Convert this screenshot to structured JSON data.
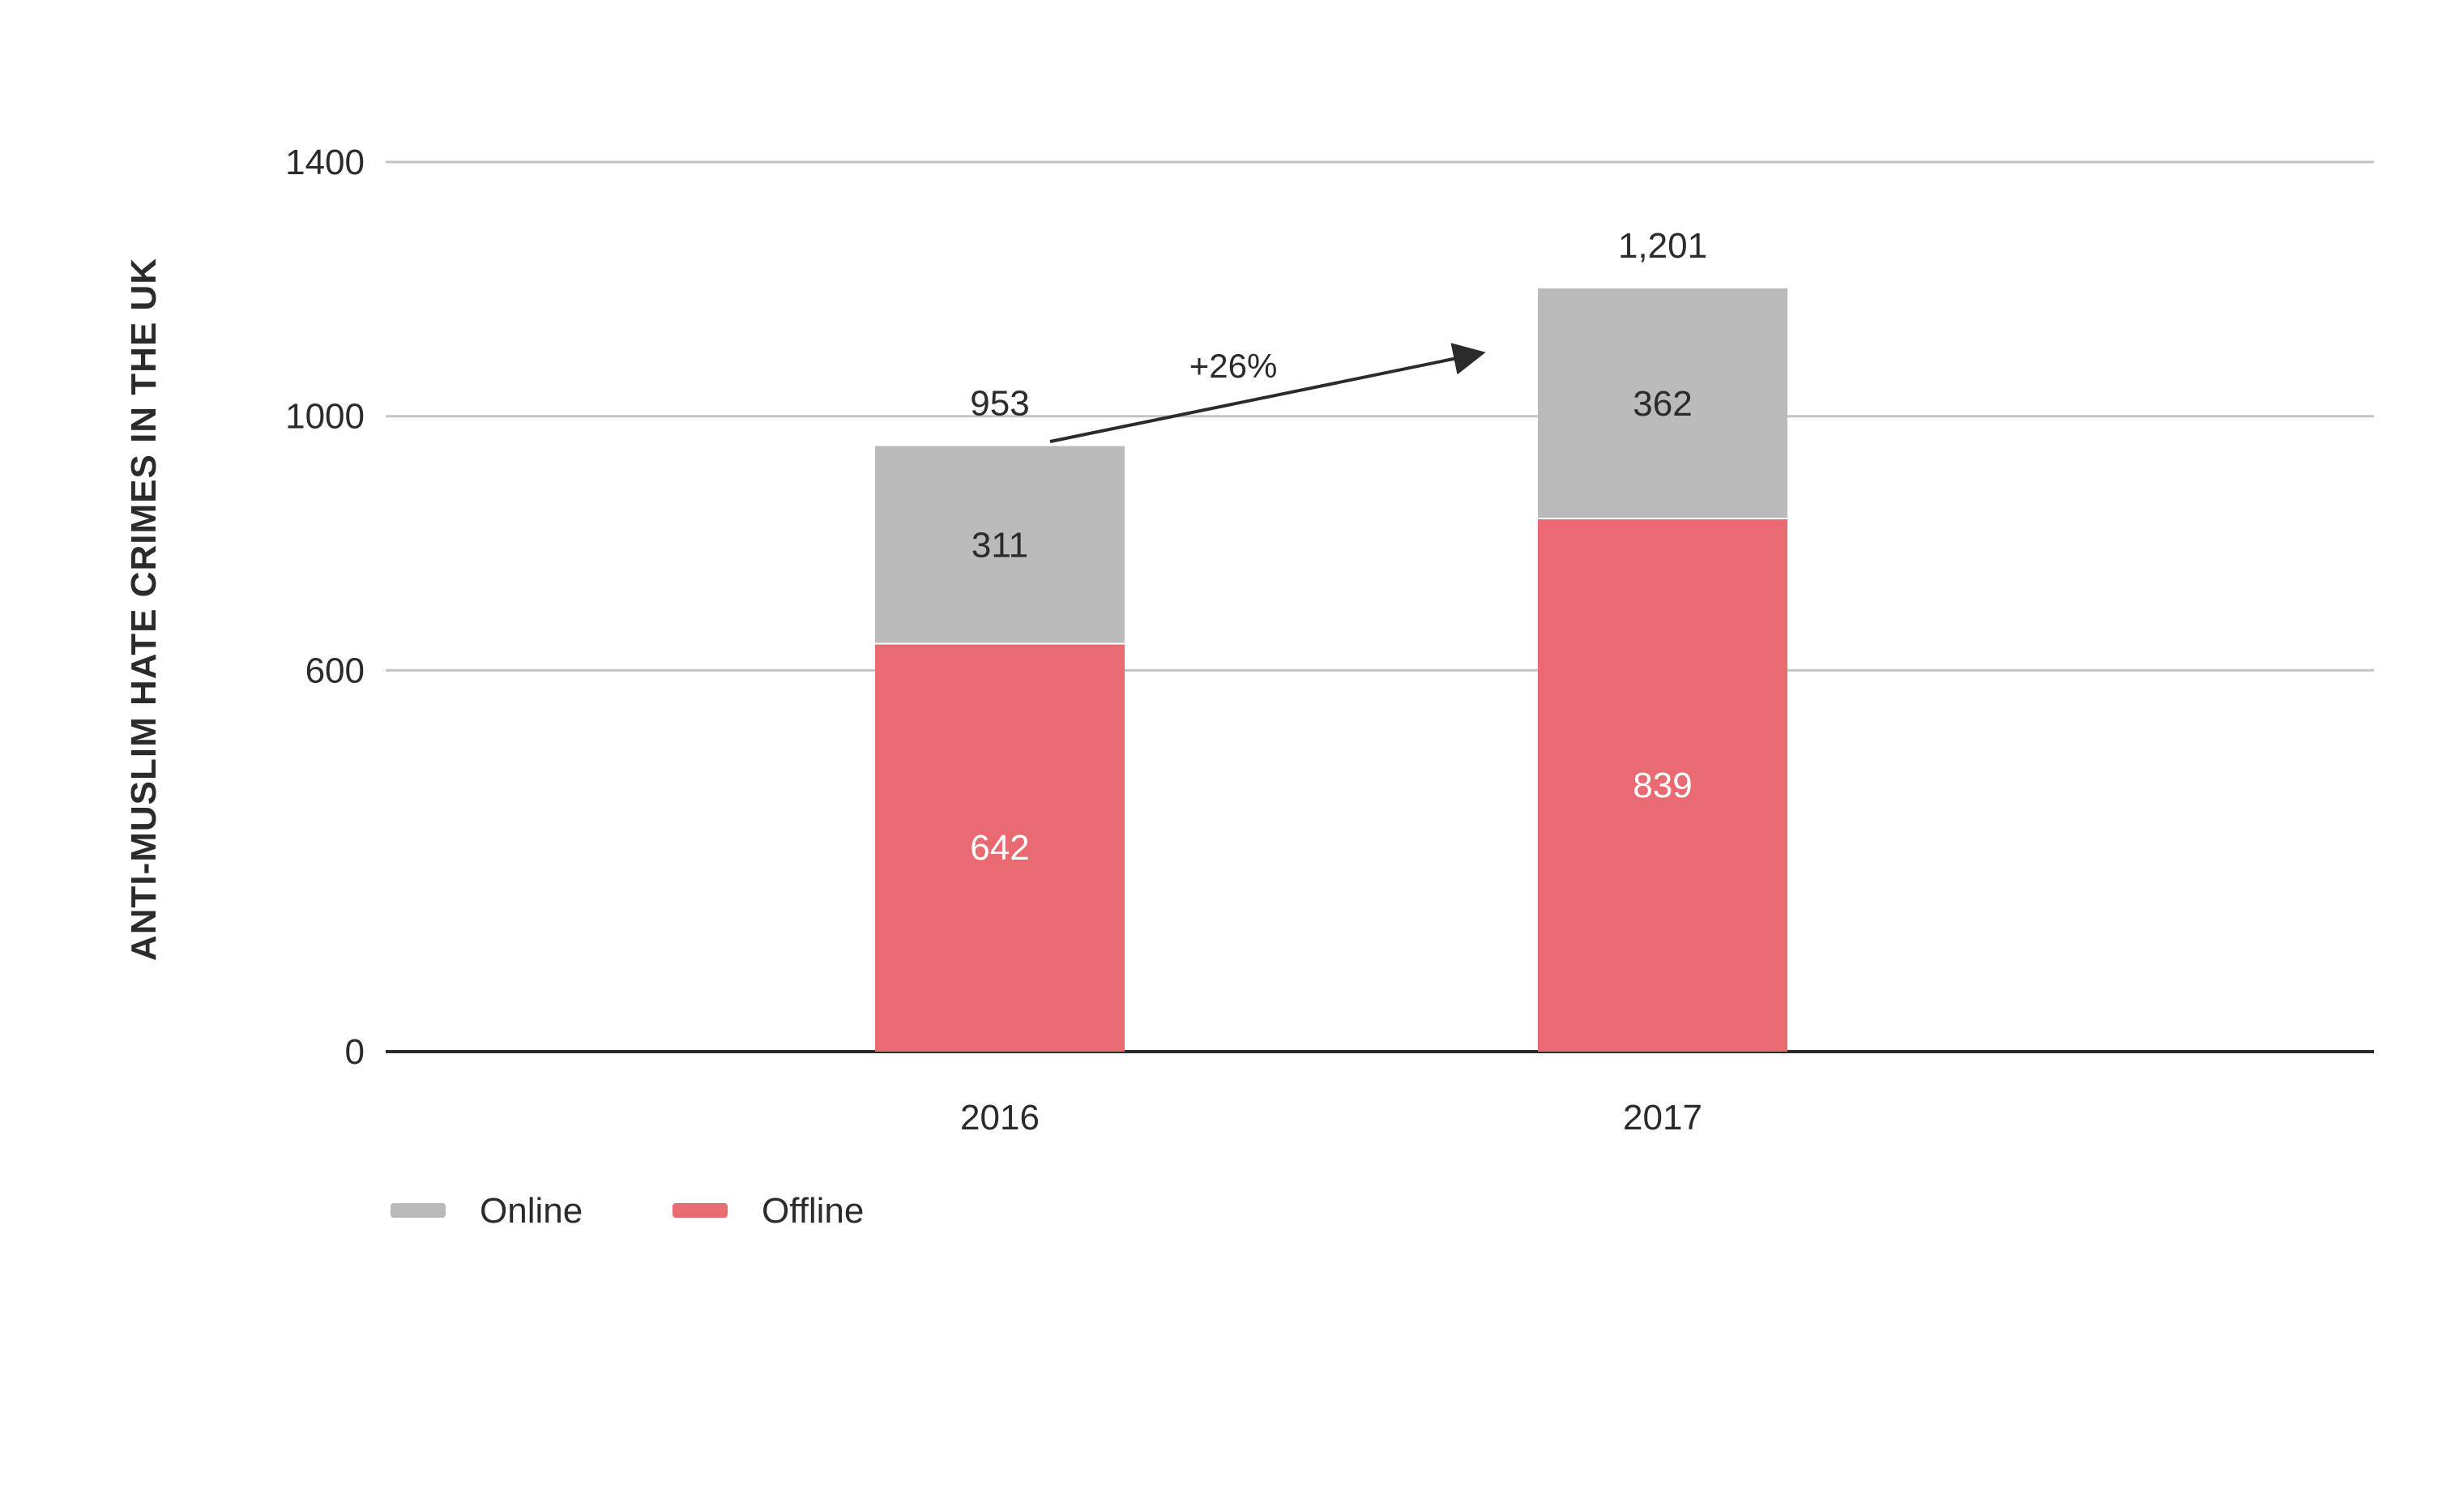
{
  "chart_data": {
    "type": "bar",
    "stacked": true,
    "title": "",
    "xlabel": "",
    "ylabel": "ANTI-MUSLIM HATE CRIMES IN THE UK",
    "categories": [
      "2016",
      "2017"
    ],
    "series": [
      {
        "name": "Offline",
        "color": "#e96a71",
        "values": [
          642,
          839
        ],
        "label_color": "#ffffff"
      },
      {
        "name": "Online",
        "color": "#bababa",
        "values": [
          311,
          362
        ],
        "label_color": "#2b2b2b"
      }
    ],
    "totals": [
      "953",
      "1,201"
    ],
    "ylim": [
      0,
      1400
    ],
    "yticks": [
      0,
      600,
      1000,
      1400
    ],
    "grid": true,
    "legend": {
      "position": "bottom-left",
      "order": [
        "Online",
        "Offline"
      ]
    },
    "annotations": [
      {
        "text": "+26%",
        "type": "arrow",
        "from_category": "2016",
        "to_category": "2017"
      }
    ]
  }
}
